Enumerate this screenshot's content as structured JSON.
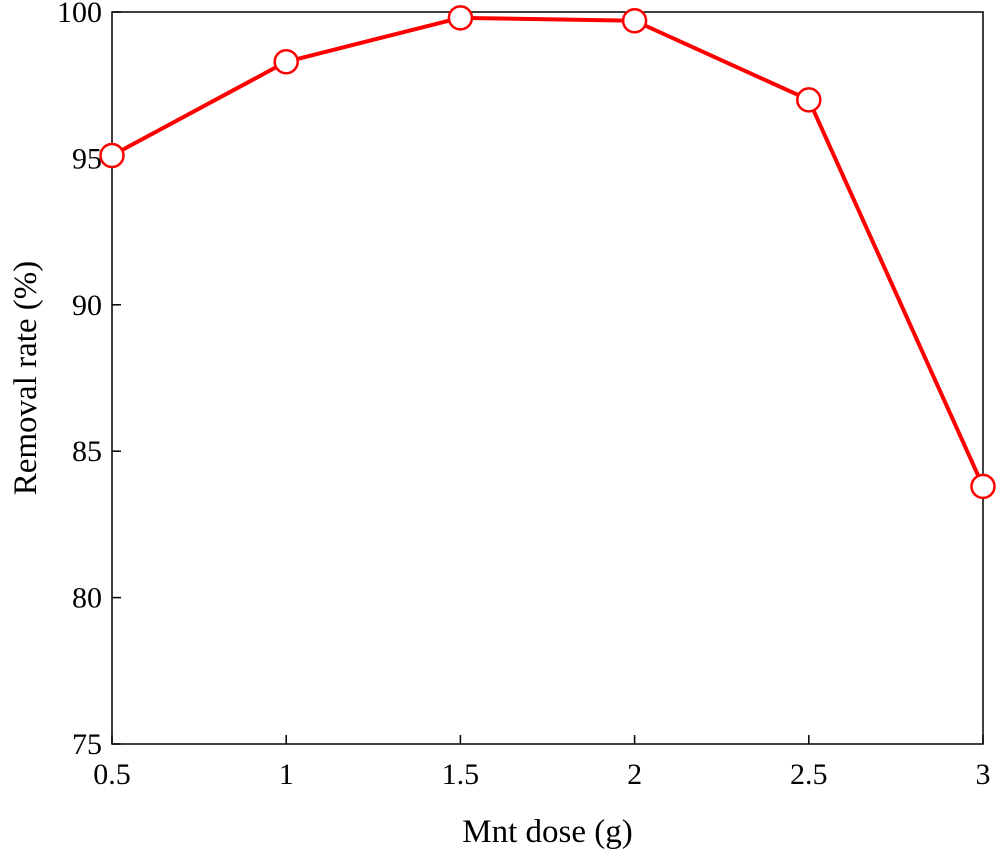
{
  "chart_data": {
    "type": "line",
    "title": "",
    "xlabel": "Mnt dose (g)",
    "ylabel": "Removal rate (%)",
    "xlim": [
      0.5,
      3
    ],
    "ylim": [
      75,
      100
    ],
    "xticks": [
      "0.5",
      "1",
      "1.5",
      "2",
      "2.5",
      "3"
    ],
    "yticks": [
      "75",
      "80",
      "85",
      "90",
      "95",
      "100"
    ],
    "grid": false,
    "legend": "none",
    "series": [
      {
        "x": [
          0.5,
          1,
          1.5,
          2,
          2.5,
          3
        ],
        "y": [
          95.1,
          98.3,
          99.8,
          99.7,
          97.0,
          83.8
        ],
        "color": "#ff0000",
        "marker": "open-circle"
      }
    ]
  }
}
